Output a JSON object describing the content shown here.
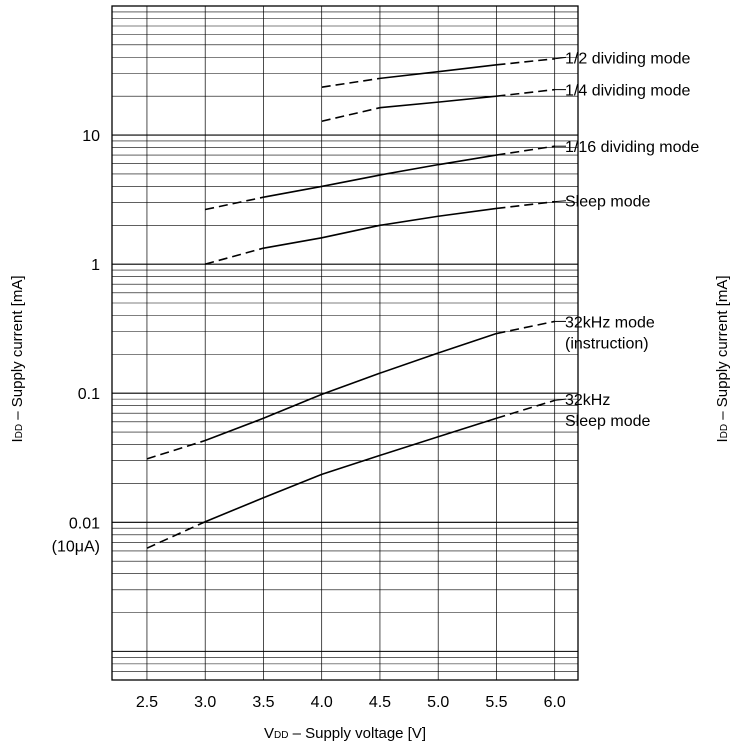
{
  "chart_data": {
    "type": "line",
    "title": "",
    "xlabel": "VDD – Supply voltage [V]",
    "xlabel_main": "V",
    "xlabel_sub": "DD",
    "xlabel_rest": " – Supply voltage [V]",
    "ylabel": "IDD – Supply current [mA]",
    "ylabel_main": "I",
    "ylabel_sub": "DD",
    "ylabel_rest": " – Supply current [mA]",
    "x_scale": "linear",
    "y_scale": "log",
    "xlim": [
      2.2,
      6.2
    ],
    "ylim": [
      0.0006,
      100
    ],
    "grid": true,
    "x_ticks": [
      2.5,
      3.0,
      3.5,
      4.0,
      4.5,
      5.0,
      5.5,
      6.0
    ],
    "x_tick_labels": [
      "2.5",
      "3.0",
      "3.5",
      "4.0",
      "4.5",
      "5.0",
      "5.5",
      "6.0"
    ],
    "y_tick_labels": [
      {
        "value": 10,
        "lines": [
          "10"
        ]
      },
      {
        "value": 1,
        "lines": [
          "1"
        ]
      },
      {
        "value": 0.1,
        "lines": [
          "0.1"
        ]
      },
      {
        "value": 0.01,
        "lines": [
          "0.01",
          "(10μA)"
        ]
      }
    ],
    "series": [
      {
        "name": "1/2 dividing mode",
        "label_lines": [
          "1/2 dividing mode"
        ],
        "label_y": 40,
        "points": [
          [
            4.0,
            23.5
          ],
          [
            4.5,
            27.5
          ],
          [
            5.0,
            31
          ],
          [
            5.5,
            35
          ],
          [
            6.0,
            39
          ]
        ],
        "solid_range": [
          4.5,
          5.5
        ]
      },
      {
        "name": "1/4 dividing mode",
        "label_lines": [
          "1/4 dividing mode"
        ],
        "label_y": 22.5,
        "points": [
          [
            4.0,
            12.8
          ],
          [
            4.5,
            16.3
          ],
          [
            5.0,
            18
          ],
          [
            5.5,
            20
          ],
          [
            6.0,
            22.5
          ]
        ],
        "solid_range": [
          4.5,
          5.5
        ]
      },
      {
        "name": "1/16 dividing mode",
        "label_lines": [
          "1/16 dividing mode"
        ],
        "label_y": 8.2,
        "points": [
          [
            3.0,
            2.65
          ],
          [
            3.5,
            3.3
          ],
          [
            4.0,
            4.0
          ],
          [
            4.5,
            4.9
          ],
          [
            5.0,
            5.9
          ],
          [
            5.5,
            7.0
          ],
          [
            6.0,
            8.2
          ]
        ],
        "solid_range": [
          3.5,
          5.5
        ]
      },
      {
        "name": "Sleep mode",
        "label_lines": [
          "Sleep mode"
        ],
        "label_y": 3.1,
        "points": [
          [
            3.0,
            1.0
          ],
          [
            3.5,
            1.33
          ],
          [
            4.0,
            1.6
          ],
          [
            4.5,
            2.0
          ],
          [
            5.0,
            2.35
          ],
          [
            5.5,
            2.7
          ],
          [
            6.0,
            3.05
          ]
        ],
        "solid_range": [
          3.5,
          5.5
        ]
      },
      {
        "name": "32kHz mode (instruction)",
        "label_lines": [
          "32kHz mode",
          "(instruction)"
        ],
        "label_y": 0.36,
        "points": [
          [
            2.5,
            0.031
          ],
          [
            3.0,
            0.043
          ],
          [
            3.5,
            0.064
          ],
          [
            4.0,
            0.098
          ],
          [
            4.5,
            0.143
          ],
          [
            5.0,
            0.205
          ],
          [
            5.5,
            0.29
          ],
          [
            6.0,
            0.36
          ]
        ],
        "solid_range": [
          3.0,
          5.5
        ]
      },
      {
        "name": "32kHz Sleep mode",
        "label_lines": [
          "32kHz",
          "Sleep mode"
        ],
        "label_y": 0.09,
        "points": [
          [
            2.5,
            0.0063
          ],
          [
            3.0,
            0.0101
          ],
          [
            3.5,
            0.0155
          ],
          [
            4.0,
            0.0235
          ],
          [
            4.5,
            0.033
          ],
          [
            5.0,
            0.046
          ],
          [
            5.5,
            0.064
          ],
          [
            6.0,
            0.088
          ]
        ],
        "solid_range": [
          3.0,
          5.5
        ]
      }
    ]
  }
}
